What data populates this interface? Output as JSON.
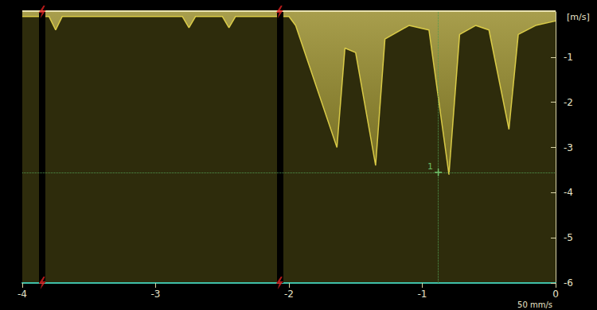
{
  "chart_data": {
    "type": "area",
    "y_label": "[m/s]",
    "annotation": "50 mm/s",
    "x": [
      -4,
      -3.8,
      -3.75,
      -3.7,
      -2.8,
      -2.75,
      -2.7,
      -2.5,
      -2.45,
      -2.4,
      -2.0,
      -1.95,
      -1.64,
      -1.58,
      -1.5,
      -1.35,
      -1.28,
      -1.1,
      -0.95,
      -0.8,
      -0.72,
      -0.6,
      -0.5,
      -0.35,
      -0.28,
      -0.15,
      0
    ],
    "values": [
      -0.1,
      -0.1,
      -0.4,
      -0.1,
      -0.1,
      -0.35,
      -0.1,
      -0.1,
      -0.35,
      -0.1,
      -0.1,
      -0.3,
      -3.0,
      -0.8,
      -0.9,
      -3.4,
      -0.6,
      -0.3,
      -0.4,
      -3.6,
      -0.5,
      -0.3,
      -0.4,
      -2.6,
      -0.5,
      -0.3,
      -0.2
    ],
    "color": "#e6d64a",
    "xlim": [
      -4,
      0
    ],
    "xticks": [
      -4,
      -3,
      -2,
      -1,
      0
    ],
    "ylim": [
      -6,
      0
    ],
    "yticks": [
      -6,
      -5,
      -4,
      -3,
      -2,
      -1
    ],
    "grid": false,
    "cursor": {
      "label": "1",
      "x": -0.88,
      "y": -3.55
    },
    "trigger_times": [
      -3.85,
      -2.07
    ]
  }
}
